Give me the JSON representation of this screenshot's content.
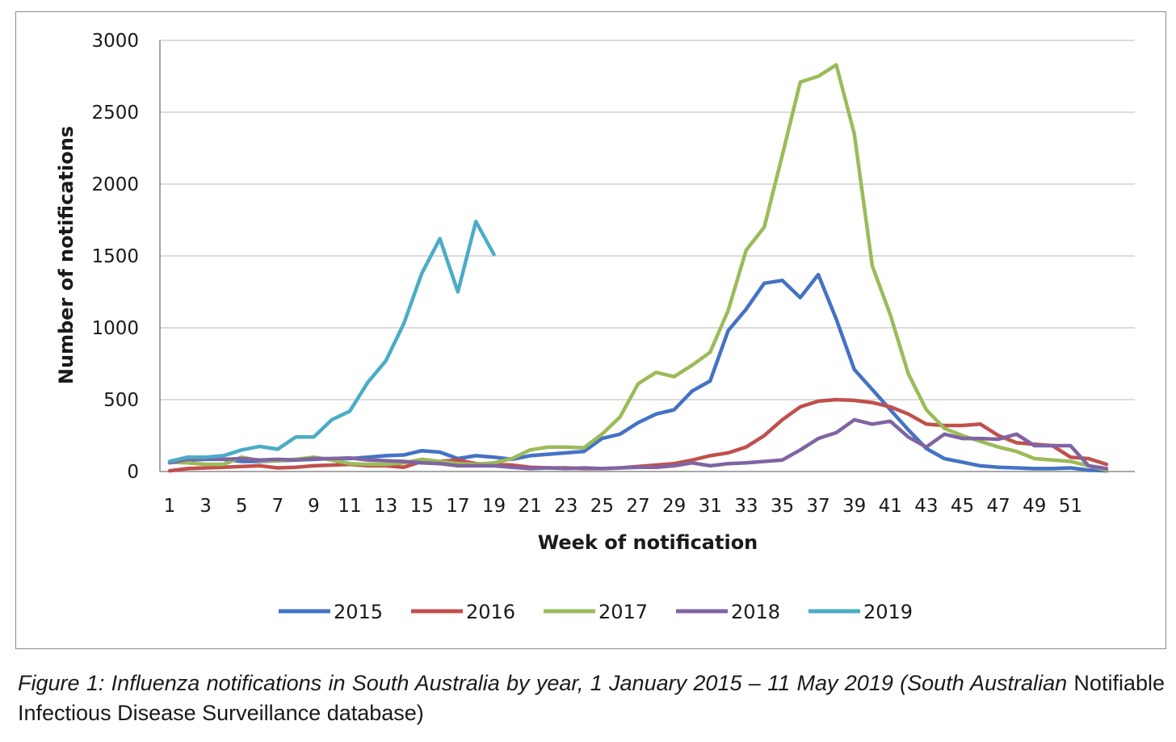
{
  "chart_data": {
    "type": "line",
    "xlabel": "Week of notification",
    "ylabel": "Number of notifications",
    "ylim": [
      0,
      3000
    ],
    "yticks": [
      0,
      500,
      1000,
      1500,
      2000,
      2500,
      3000
    ],
    "xlim": [
      1,
      53
    ],
    "xtick_labels": [
      "1",
      "3",
      "5",
      "7",
      "9",
      "11",
      "13",
      "15",
      "17",
      "19",
      "21",
      "23",
      "25",
      "27",
      "29",
      "31",
      "33",
      "35",
      "37",
      "39",
      "41",
      "43",
      "45",
      "47",
      "49",
      "51"
    ],
    "grid": "horizontal",
    "legend_position": "bottom",
    "series": [
      {
        "name": "2015",
        "color": "#4472c4",
        "x": [
          1,
          2,
          3,
          4,
          5,
          6,
          7,
          8,
          9,
          10,
          11,
          12,
          13,
          14,
          15,
          16,
          17,
          18,
          19,
          20,
          21,
          22,
          23,
          24,
          25,
          26,
          27,
          28,
          29,
          30,
          31,
          32,
          33,
          34,
          35,
          36,
          37,
          38,
          39,
          40,
          41,
          42,
          43,
          44,
          45,
          46,
          47,
          48,
          49,
          50,
          51,
          52,
          53
        ],
        "y": [
          65,
          80,
          85,
          85,
          70,
          70,
          75,
          80,
          85,
          90,
          90,
          100,
          110,
          115,
          145,
          135,
          90,
          110,
          100,
          85,
          110,
          120,
          130,
          140,
          230,
          260,
          340,
          400,
          430,
          560,
          630,
          980,
          1130,
          1310,
          1330,
          1210,
          1370,
          1060,
          710,
          570,
          430,
          290,
          160,
          90,
          65,
          40,
          30,
          25,
          20,
          20,
          25,
          10,
          5
        ]
      },
      {
        "name": "2016",
        "color": "#c0504d",
        "x": [
          1,
          2,
          3,
          4,
          5,
          6,
          7,
          8,
          9,
          10,
          11,
          12,
          13,
          14,
          15,
          16,
          17,
          18,
          19,
          20,
          21,
          22,
          23,
          24,
          25,
          26,
          27,
          28,
          29,
          30,
          31,
          32,
          33,
          34,
          35,
          36,
          37,
          38,
          39,
          40,
          41,
          42,
          43,
          44,
          45,
          46,
          47,
          48,
          49,
          50,
          51,
          52,
          53
        ],
        "y": [
          5,
          20,
          25,
          30,
          35,
          40,
          25,
          30,
          40,
          45,
          50,
          40,
          40,
          30,
          70,
          70,
          80,
          55,
          50,
          45,
          30,
          25,
          25,
          20,
          20,
          25,
          35,
          45,
          55,
          80,
          110,
          130,
          170,
          250,
          360,
          450,
          490,
          500,
          495,
          480,
          450,
          400,
          330,
          320,
          320,
          330,
          250,
          200,
          190,
          180,
          100,
          90,
          50
        ]
      },
      {
        "name": "2017",
        "color": "#9bbb59",
        "x": [
          1,
          2,
          3,
          4,
          5,
          6,
          7,
          8,
          9,
          10,
          11,
          12,
          13,
          14,
          15,
          16,
          17,
          18,
          19,
          20,
          21,
          22,
          23,
          24,
          25,
          26,
          27,
          28,
          29,
          30,
          31,
          32,
          33,
          34,
          35,
          36,
          37,
          38,
          39,
          40,
          41,
          42,
          43,
          44,
          45,
          46,
          47,
          48,
          49,
          50,
          51,
          52,
          53
        ],
        "y": [
          65,
          60,
          50,
          50,
          100,
          75,
          75,
          85,
          100,
          80,
          55,
          50,
          50,
          60,
          85,
          70,
          55,
          50,
          60,
          90,
          150,
          170,
          170,
          165,
          260,
          380,
          610,
          690,
          660,
          740,
          830,
          1120,
          1540,
          1700,
          2200,
          2710,
          2750,
          2830,
          2350,
          1430,
          1090,
          680,
          430,
          300,
          250,
          210,
          170,
          140,
          90,
          80,
          70,
          40,
          10
        ]
      },
      {
        "name": "2018",
        "color": "#8064a2",
        "x": [
          1,
          2,
          3,
          4,
          5,
          6,
          7,
          8,
          9,
          10,
          11,
          12,
          13,
          14,
          15,
          16,
          17,
          18,
          19,
          20,
          21,
          22,
          23,
          24,
          25,
          26,
          27,
          28,
          29,
          30,
          31,
          32,
          33,
          34,
          35,
          36,
          37,
          38,
          39,
          40,
          41,
          42,
          43,
          44,
          45,
          46,
          47,
          48,
          49,
          50,
          51,
          52,
          53
        ],
        "y": [
          60,
          85,
          90,
          85,
          90,
          80,
          85,
          80,
          90,
          90,
          95,
          80,
          75,
          70,
          60,
          55,
          40,
          40,
          40,
          30,
          20,
          25,
          20,
          25,
          20,
          25,
          30,
          30,
          40,
          60,
          40,
          55,
          60,
          70,
          80,
          150,
          230,
          270,
          360,
          330,
          350,
          240,
          170,
          260,
          230,
          230,
          225,
          260,
          180,
          180,
          180,
          40,
          20
        ]
      },
      {
        "name": "2019",
        "color": "#4bacc6",
        "x": [
          1,
          2,
          3,
          4,
          5,
          6,
          7,
          8,
          9,
          10,
          11,
          12,
          13,
          14,
          15,
          16,
          17,
          18,
          19
        ],
        "y": [
          70,
          100,
          100,
          110,
          150,
          175,
          155,
          240,
          240,
          360,
          420,
          620,
          770,
          1030,
          1380,
          1620,
          1250,
          1740,
          1510
        ]
      }
    ]
  },
  "caption": {
    "italic": "Figure 1: Influenza notifications in South Australia by year, 1 January 2015 – 11 May 2019 (South Australian",
    "normal": " Notifiable Infectious Disease Surveillance database)"
  }
}
